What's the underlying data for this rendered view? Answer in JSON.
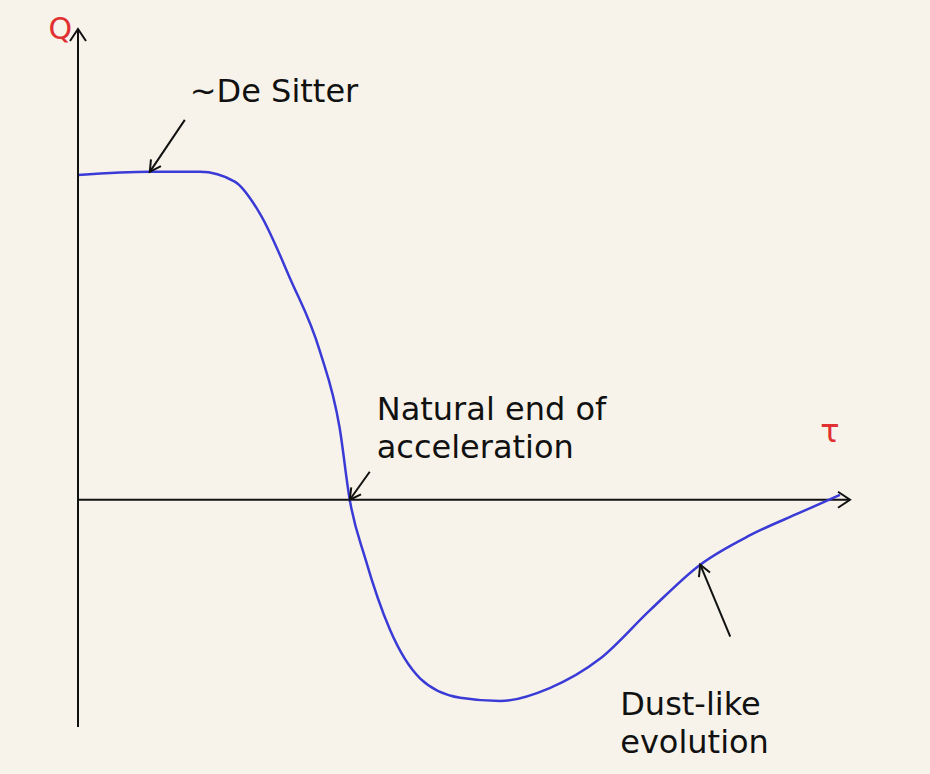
{
  "chart_data": {
    "type": "line",
    "x_label": "τ",
    "y_label": "Q",
    "x": [
      0,
      0.93,
      1.58,
      2.03,
      2.36,
      2.75,
      3.13,
      3.39,
      3.52,
      3.72,
      4.04,
      4.43,
      4.95,
      5.47,
      6.11,
      6.76,
      7.41,
      8.06,
      8.7,
      9.35,
      9.87
    ],
    "values": [
      1.0,
      1.01,
      1.01,
      0.98,
      0.88,
      0.68,
      0.46,
      0.22,
      0,
      -0.18,
      -0.4,
      -0.55,
      -0.61,
      -0.62,
      -0.58,
      -0.49,
      -0.34,
      -0.2,
      -0.11,
      -0.04,
      0.015
    ],
    "color": "#3a3ad6",
    "xlim": [
      0,
      10
    ],
    "ylim": [
      -0.7,
      1.45
    ],
    "xticks": [],
    "yticks": [],
    "tick_labels": false,
    "grid": false,
    "annotations": [
      {
        "text": "~De Sitter",
        "x": 0.93,
        "y": 1.01
      },
      {
        "text": "Natural end of acceleration",
        "x": 3.52,
        "y": 0
      },
      {
        "text": "Dust-like evolution",
        "x": 8.06,
        "y": -0.2
      }
    ]
  }
}
